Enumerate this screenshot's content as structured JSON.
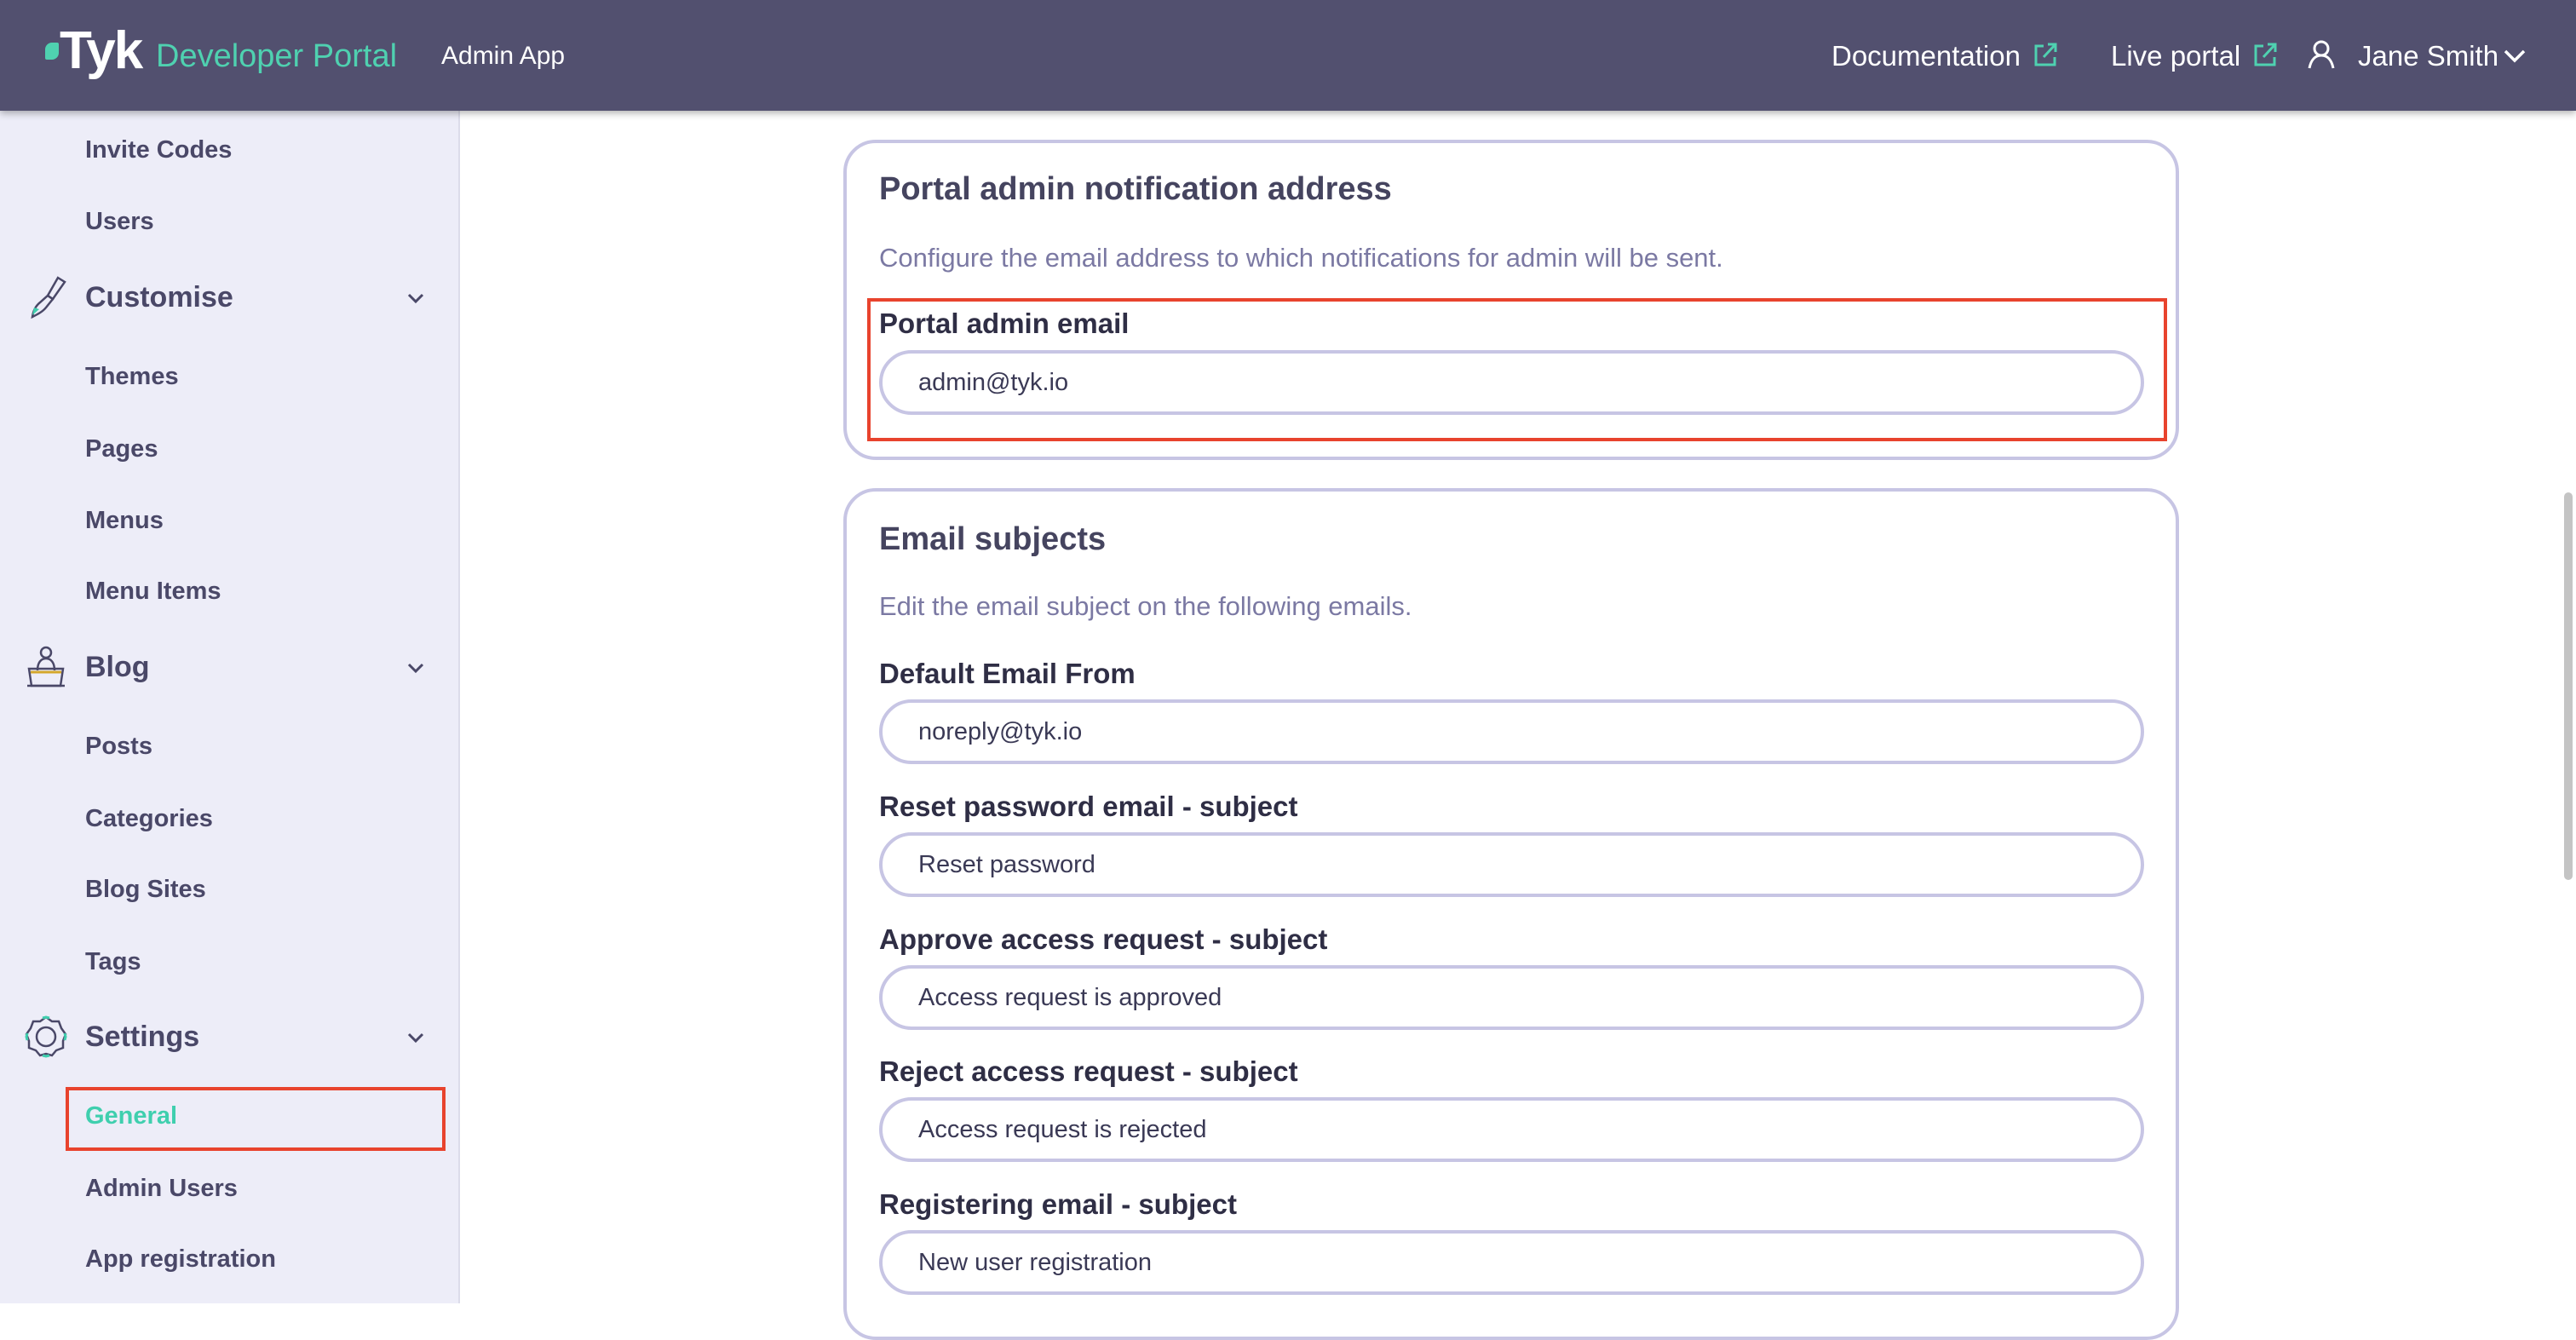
{
  "header": {
    "logo_text": "Tyk",
    "product": "Developer Portal",
    "app_name": "Admin App",
    "documentation": "Documentation",
    "live_portal": "Live portal",
    "user_name": "Jane Smith"
  },
  "sidebar": {
    "items": [
      {
        "label": "Invite Codes"
      },
      {
        "label": "Users"
      },
      {
        "label": "Customise",
        "icon": "paintbrush-icon"
      },
      {
        "label": "Themes"
      },
      {
        "label": "Pages"
      },
      {
        "label": "Menus"
      },
      {
        "label": "Menu Items"
      },
      {
        "label": "Blog",
        "icon": "blog-writer-icon"
      },
      {
        "label": "Posts"
      },
      {
        "label": "Categories"
      },
      {
        "label": "Blog Sites"
      },
      {
        "label": "Tags"
      },
      {
        "label": "Settings",
        "icon": "gear-icon"
      },
      {
        "label": "General",
        "active": true
      },
      {
        "label": "Admin Users"
      },
      {
        "label": "App registration"
      }
    ]
  },
  "notification_card": {
    "title": "Portal admin notification address",
    "description": "Configure the email address to which notifications for admin will be sent.",
    "field_label": "Portal admin email",
    "field_value": "admin@tyk.io"
  },
  "subjects_card": {
    "title": "Email subjects",
    "description": "Edit the email subject on the following emails.",
    "fields": [
      {
        "label": "Default Email From",
        "value": "noreply@tyk.io"
      },
      {
        "label": "Reset password email - subject",
        "value": "Reset password"
      },
      {
        "label": "Approve access request - subject",
        "value": "Access request is approved"
      },
      {
        "label": "Reject access request - subject",
        "value": "Access request is rejected"
      },
      {
        "label": "Registering email - subject",
        "value": "New user registration"
      }
    ]
  },
  "colors": {
    "header_bg": "#52506f",
    "accent": "#3fcfae",
    "highlight": "#e8432d",
    "sidebar_bg": "#ededf8"
  }
}
